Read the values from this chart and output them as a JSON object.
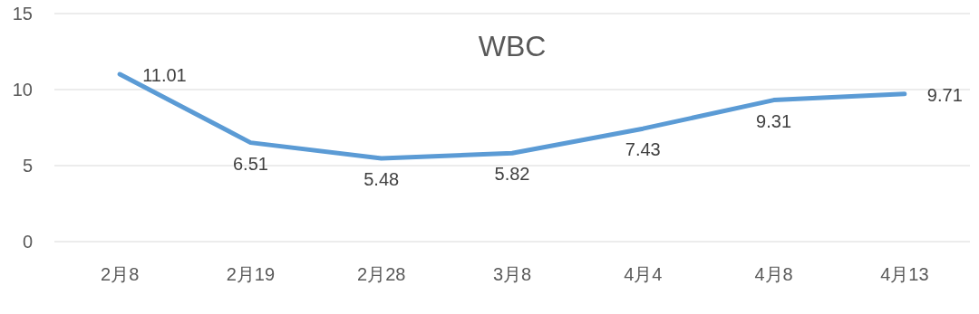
{
  "chart_data": {
    "type": "line",
    "title": "WBC",
    "categories": [
      "2月8",
      "2月19",
      "2月28",
      "3月8",
      "4月4",
      "4月8",
      "4月13"
    ],
    "series": [
      {
        "color": "#5b9bd5",
        "values": [
          11.01,
          6.51,
          5.48,
          5.82,
          7.43,
          9.31,
          9.71
        ]
      }
    ],
    "ylim": [
      0,
      15
    ],
    "yticks": [
      0,
      5,
      10,
      15
    ],
    "grid": "y",
    "marker": "none",
    "line_style": "solid",
    "data_labels": true
  }
}
